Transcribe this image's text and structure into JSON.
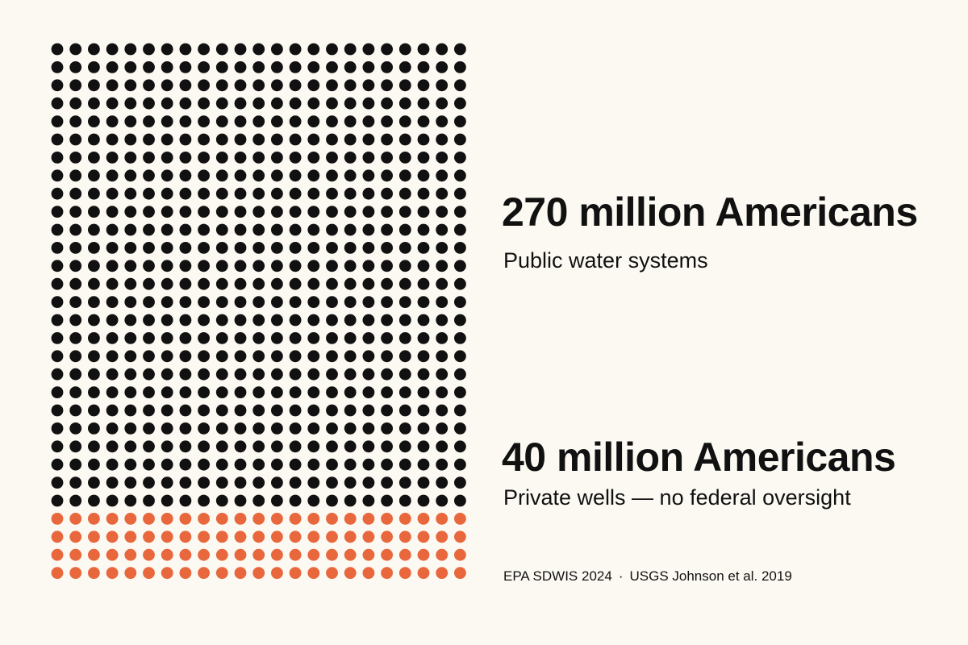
{
  "chart_data": {
    "type": "waffle",
    "columns": 23,
    "series": [
      {
        "label": "270 million Americans",
        "description": "Public water systems",
        "value_millions": 270,
        "dot_count": 598,
        "rows": 26,
        "color": "#111111"
      },
      {
        "label": "40 million Americans",
        "description": "Private wells — no federal oversight",
        "value_millions": 40,
        "dot_count": 92,
        "rows": 4,
        "color": "#e8673c"
      }
    ]
  },
  "source": {
    "left": "EPA SDWIS 2024",
    "separator": "·",
    "right": "USGS Johnson et al. 2019"
  },
  "colors": {
    "background": "#fbf9f2",
    "public": "#111111",
    "private": "#e8673c"
  }
}
